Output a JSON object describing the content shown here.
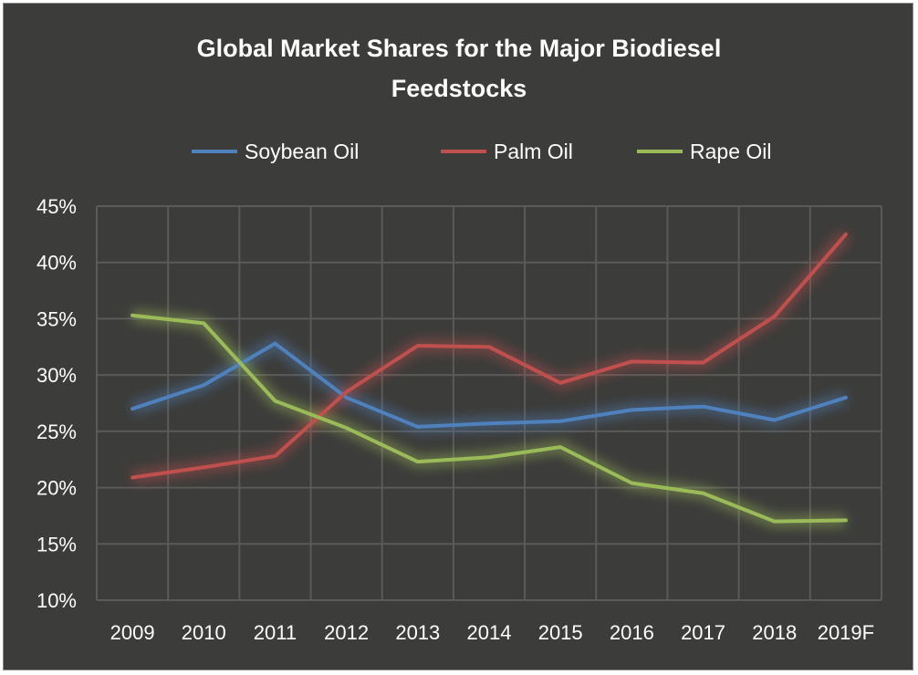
{
  "chart_data": {
    "type": "line",
    "title": "Global Market Shares for the Major Biodiesel Feedstocks",
    "title_lines": [
      "Global Market Shares for the Major Biodiesel",
      "Feedstocks"
    ],
    "xlabel": "",
    "ylabel": "",
    "categories": [
      "2009",
      "2010",
      "2011",
      "2012",
      "2013",
      "2014",
      "2015",
      "2016",
      "2017",
      "2018",
      "2019F"
    ],
    "ylim": [
      10,
      45
    ],
    "yticks": [
      10,
      15,
      20,
      25,
      30,
      35,
      40,
      45
    ],
    "ytick_labels": [
      "10%",
      "15%",
      "20%",
      "25%",
      "30%",
      "35%",
      "40%",
      "45%"
    ],
    "grid": true,
    "legend_position": "top",
    "series": [
      {
        "name": "Soybean Oil",
        "color": "#4f81bd",
        "values": [
          27.0,
          29.1,
          32.8,
          28.0,
          25.4,
          25.7,
          25.9,
          26.9,
          27.2,
          26.0,
          28.0
        ]
      },
      {
        "name": "Palm Oil",
        "color": "#c0504d",
        "values": [
          20.9,
          21.8,
          22.8,
          28.5,
          32.6,
          32.5,
          29.3,
          31.2,
          31.1,
          35.2,
          42.5
        ]
      },
      {
        "name": "Rape Oil",
        "color": "#9bbb59",
        "values": [
          35.3,
          34.6,
          27.7,
          25.3,
          22.3,
          22.7,
          23.6,
          20.4,
          19.5,
          17.0,
          17.1
        ]
      }
    ]
  }
}
